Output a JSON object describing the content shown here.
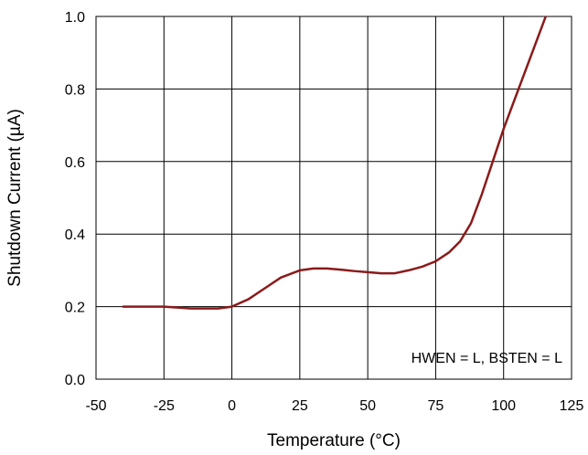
{
  "chart_data": {
    "type": "line",
    "xlabel": "Temperature (°C)",
    "ylabel": "Shutdown Current (µA)",
    "xlim": [
      -50,
      125
    ],
    "ylim": [
      0.0,
      1.0
    ],
    "x_ticks": [
      "-50",
      "-25",
      "0",
      "25",
      "50",
      "75",
      "100",
      "125"
    ],
    "y_ticks": [
      "0.0",
      "0.2",
      "0.4",
      "0.6",
      "0.8",
      "1.0"
    ],
    "grid": true,
    "annotation": "HWEN = L, BSTEN = L",
    "series": [
      {
        "color": "#8b1a1a",
        "x": [
          -40,
          -25,
          -15,
          -10,
          -5,
          0,
          6,
          12,
          18,
          25,
          30,
          35,
          40,
          45,
          50,
          55,
          60,
          65,
          70,
          75,
          80,
          84,
          88,
          92,
          96,
          100,
          104,
          108,
          112,
          116
        ],
        "y": [
          0.2,
          0.2,
          0.195,
          0.195,
          0.195,
          0.2,
          0.22,
          0.25,
          0.28,
          0.3,
          0.305,
          0.305,
          0.302,
          0.298,
          0.295,
          0.292,
          0.292,
          0.3,
          0.31,
          0.325,
          0.35,
          0.38,
          0.43,
          0.51,
          0.6,
          0.69,
          0.77,
          0.85,
          0.93,
          1.01
        ]
      }
    ]
  }
}
